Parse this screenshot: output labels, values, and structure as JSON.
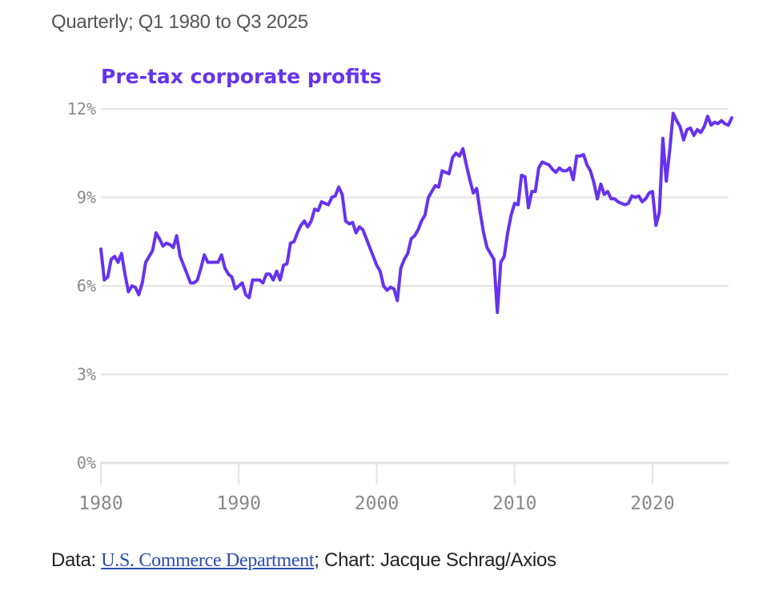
{
  "subtitle": "Quarterly; Q1 1980 to Q3 2025",
  "source": {
    "prefix": "Data: ",
    "link_text": "U.S. Commerce Department",
    "suffix": "; Chart: Jacque Schrag/Axios"
  },
  "colors": {
    "line": "#6633ee",
    "grid": "#e3e3e3",
    "axis_text": "#888888"
  },
  "chart_data": {
    "type": "line",
    "title": "Pre-tax corporate profits",
    "subtitle": "Quarterly; Q1 1980 to Q3 2025",
    "xlabel": "",
    "ylabel": "",
    "xlim": [
      1980,
      2025.5
    ],
    "ylim": [
      0,
      12
    ],
    "grid": true,
    "yticks": [
      0,
      3,
      6,
      9,
      12
    ],
    "ytick_labels": [
      "0%",
      "3%",
      "6%",
      "9%",
      "12%"
    ],
    "xticks": [
      1980,
      1990,
      2000,
      2010,
      2020
    ],
    "xtick_labels": [
      "1980",
      "1990",
      "2000",
      "2010",
      "2020"
    ],
    "series": [
      {
        "name": "Pre-tax corporate profits",
        "x_start": 1980,
        "x_step": 0.25,
        "values": [
          7.25,
          6.2,
          6.3,
          6.9,
          7.0,
          6.8,
          7.1,
          6.4,
          5.8,
          6.0,
          5.95,
          5.7,
          6.1,
          6.8,
          7.0,
          7.2,
          7.8,
          7.6,
          7.35,
          7.45,
          7.4,
          7.3,
          7.7,
          7.0,
          6.7,
          6.4,
          6.1,
          6.1,
          6.2,
          6.6,
          7.05,
          6.8,
          6.8,
          6.8,
          6.8,
          7.05,
          6.6,
          6.4,
          6.3,
          5.9,
          6.0,
          6.1,
          5.7,
          5.6,
          6.2,
          6.2,
          6.2,
          6.1,
          6.4,
          6.4,
          6.2,
          6.5,
          6.2,
          6.7,
          6.75,
          7.45,
          7.5,
          7.8,
          8.05,
          8.2,
          8.0,
          8.2,
          8.6,
          8.55,
          8.85,
          8.8,
          8.75,
          9.0,
          9.05,
          9.35,
          9.1,
          8.2,
          8.1,
          8.15,
          7.8,
          8.0,
          7.9,
          7.6,
          7.3,
          7.0,
          6.7,
          6.5,
          6.0,
          5.85,
          5.95,
          5.9,
          5.5,
          6.6,
          6.9,
          7.1,
          7.6,
          7.7,
          7.9,
          8.2,
          8.4,
          9.0,
          9.2,
          9.4,
          9.35,
          9.9,
          9.85,
          9.8,
          10.35,
          10.5,
          10.4,
          10.65,
          10.1,
          9.6,
          9.15,
          9.3,
          8.5,
          7.8,
          7.3,
          7.1,
          6.9,
          5.1,
          6.8,
          7.0,
          7.8,
          8.4,
          8.8,
          8.75,
          9.75,
          9.7,
          8.65,
          9.2,
          9.2,
          10.0,
          10.2,
          10.15,
          10.1,
          9.95,
          9.85,
          10.0,
          9.9,
          9.9,
          10.0,
          9.6,
          10.4,
          10.4,
          10.45,
          10.1,
          9.9,
          9.5,
          8.95,
          9.45,
          9.1,
          9.2,
          8.95,
          8.95,
          8.85,
          8.8,
          8.75,
          8.8,
          9.05,
          9.0,
          9.05,
          8.85,
          8.95,
          9.15,
          9.2,
          8.05,
          8.5,
          11.0,
          9.55,
          10.6,
          11.85,
          11.6,
          11.4,
          10.95,
          11.3,
          11.35,
          11.1,
          11.3,
          11.2,
          11.4,
          11.75,
          11.45,
          11.55,
          11.5,
          11.6,
          11.5,
          11.45,
          11.7
        ]
      }
    ]
  }
}
